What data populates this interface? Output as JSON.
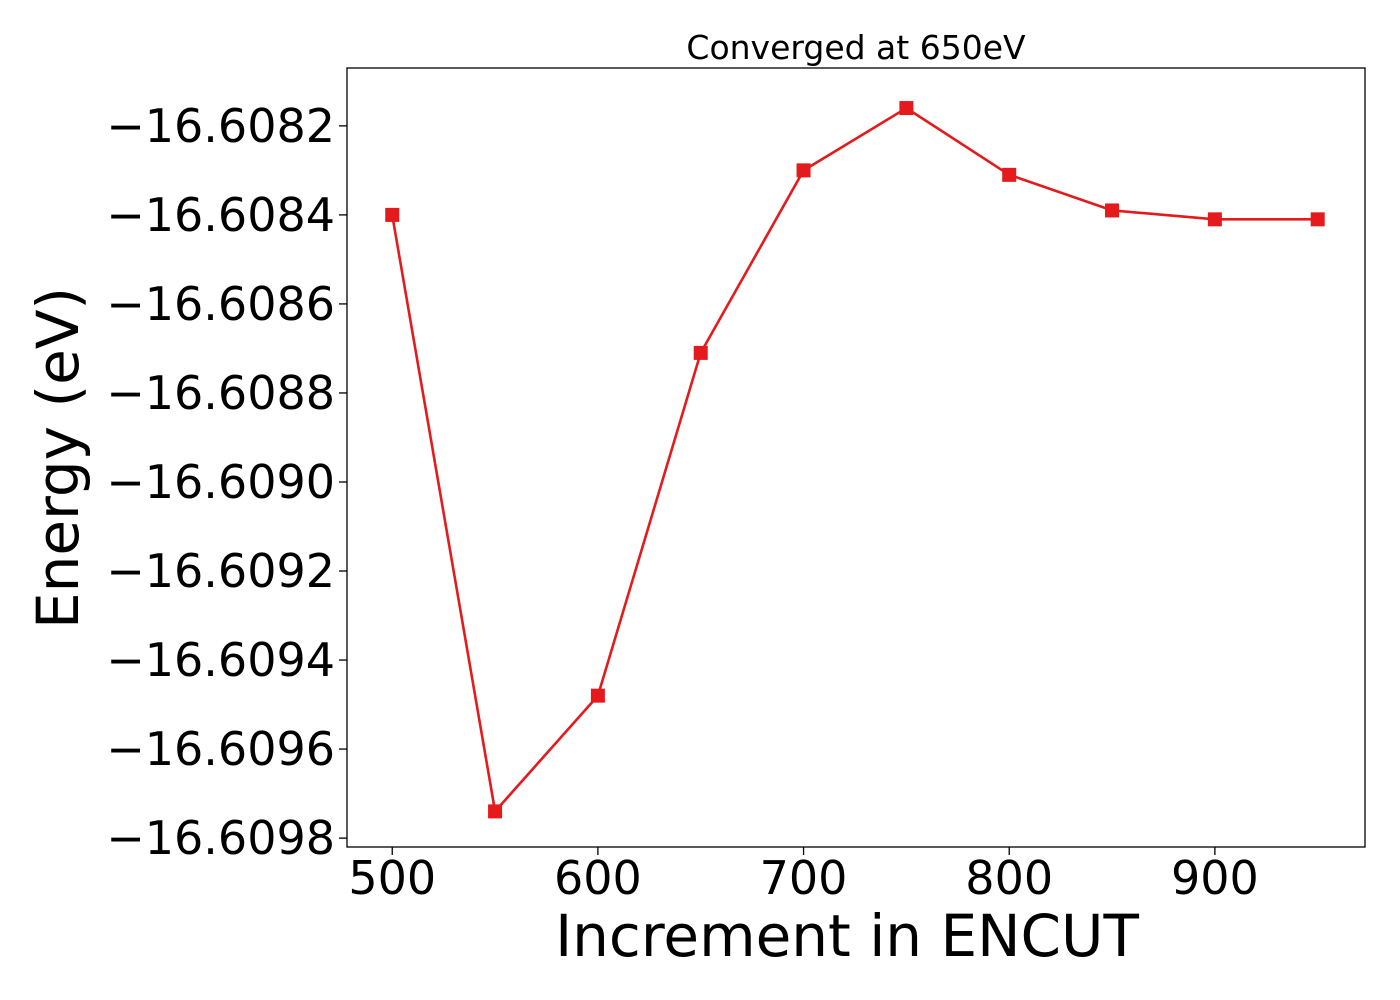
{
  "chart_data": {
    "type": "line",
    "title": "Converged at 650eV",
    "xlabel": "Increment in ENCUT",
    "ylabel": "Energy (eV)",
    "x": [
      500,
      550,
      600,
      650,
      700,
      750,
      800,
      850,
      900,
      950
    ],
    "series": [
      {
        "values": [
          -16.6084,
          -16.60974,
          -16.60948,
          -16.60871,
          -16.6083,
          -16.60816,
          -16.60831,
          -16.60839,
          -16.60841,
          -16.60841
        ],
        "color": "#e41a1c",
        "marker": "square"
      }
    ],
    "xlim": [
      478,
      973
    ],
    "ylim": [
      -16.60982,
      -16.60807
    ],
    "xticks": [
      500,
      600,
      700,
      800,
      900
    ],
    "xtick_labels": [
      "500",
      "600",
      "700",
      "800",
      "900"
    ],
    "yticks": [
      -16.6098,
      -16.6096,
      -16.6094,
      -16.6092,
      -16.609,
      -16.6088,
      -16.6086,
      -16.6084,
      -16.6082
    ],
    "ytick_labels": [
      "−16.6098",
      "−16.6096",
      "−16.6094",
      "−16.6092",
      "−16.6090",
      "−16.6088",
      "−16.6086",
      "−16.6084",
      "−16.6082"
    ],
    "grid": false,
    "legend": "none"
  }
}
